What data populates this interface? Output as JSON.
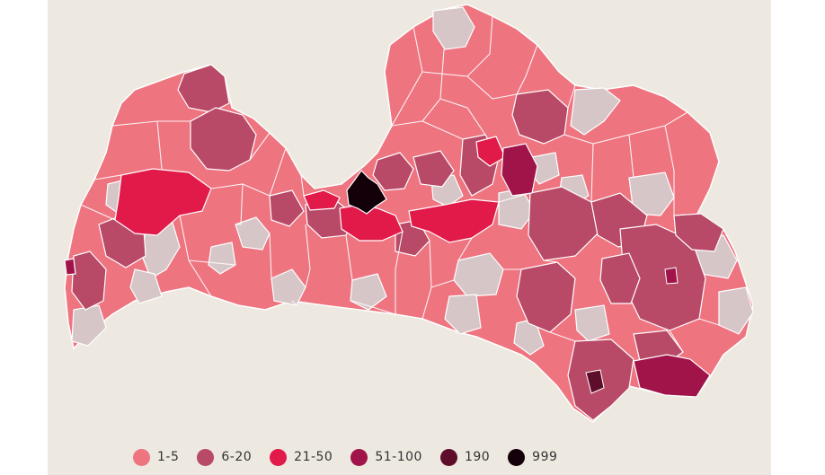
{
  "map": {
    "region": "Latvia",
    "background_color": "#ede9e0",
    "no_data_color": "#d6c6c8",
    "border_color": "#ffffff"
  },
  "legend": [
    {
      "label": "1-5",
      "color": "#ee7480"
    },
    {
      "label": "6-20",
      "color": "#b84a67"
    },
    {
      "label": "21-50",
      "color": "#e11a49"
    },
    {
      "label": "51-100",
      "color": "#a0144a"
    },
    {
      "label": "190",
      "color": "#5e0d2a"
    },
    {
      "label": "999",
      "color": "#140008"
    }
  ]
}
